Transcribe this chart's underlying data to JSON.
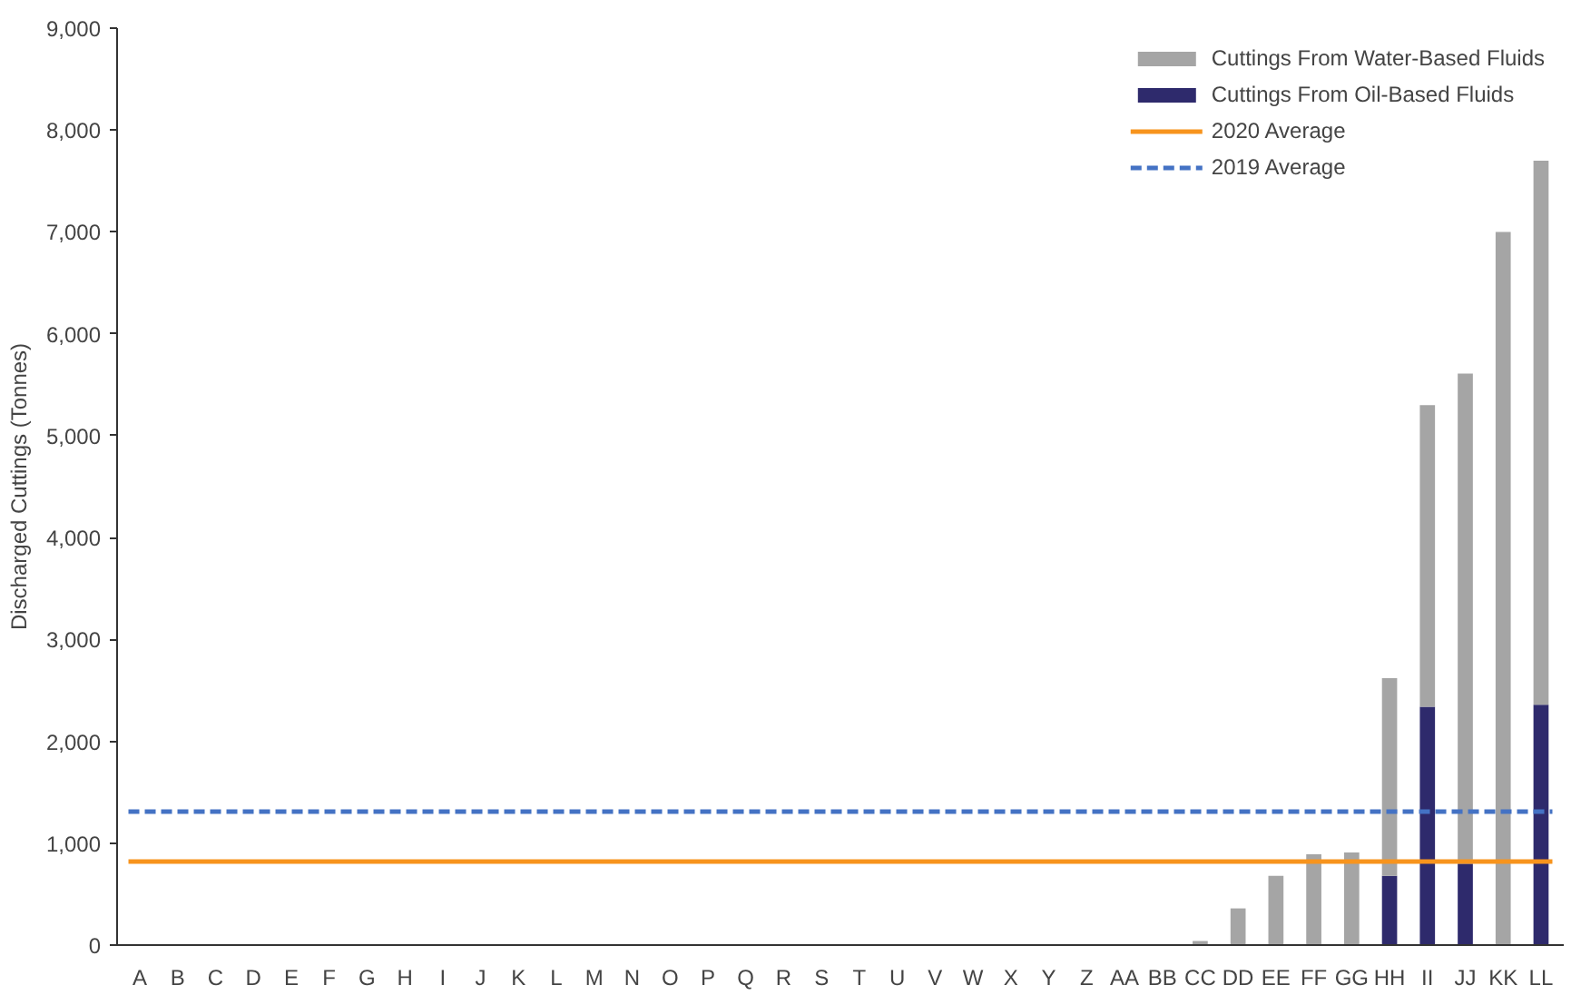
{
  "chart_data": {
    "type": "bar",
    "stacked": true,
    "ylabel": "Discharged Cuttings (Tonnes)",
    "categories": [
      "A",
      "B",
      "C",
      "D",
      "E",
      "F",
      "G",
      "H",
      "I",
      "J",
      "K",
      "L",
      "M",
      "N",
      "O",
      "P",
      "Q",
      "R",
      "S",
      "T",
      "U",
      "V",
      "W",
      "X",
      "Y",
      "Z",
      "AA",
      "BB",
      "CC",
      "DD",
      "EE",
      "FF",
      "GG",
      "HH",
      "II",
      "JJ",
      "KK",
      "LL"
    ],
    "series": [
      {
        "name": "Cuttings From Oil-Based Fluids",
        "color": "#2e2a6c",
        "values": [
          0,
          0,
          0,
          0,
          0,
          0,
          0,
          0,
          0,
          0,
          0,
          0,
          0,
          0,
          0,
          0,
          0,
          0,
          0,
          0,
          0,
          0,
          0,
          0,
          0,
          0,
          0,
          0,
          0,
          0,
          0,
          0,
          0,
          680,
          2340,
          800,
          0,
          2360
        ]
      },
      {
        "name": "Cuttings From Water-Based Fluids",
        "color": "#a5a5a5",
        "values": [
          0,
          0,
          0,
          0,
          0,
          0,
          0,
          0,
          0,
          0,
          0,
          0,
          0,
          0,
          0,
          0,
          0,
          0,
          0,
          0,
          0,
          0,
          0,
          0,
          0,
          0,
          0,
          0,
          40,
          360,
          680,
          890,
          910,
          1940,
          2960,
          4810,
          7000,
          5340
        ]
      }
    ],
    "ref_lines": [
      {
        "axis": "y",
        "value": 820,
        "label": "2020 Average",
        "color": "#f7941d",
        "line_style": "solid"
      },
      {
        "axis": "y",
        "value": 1310,
        "label": "2019 Average",
        "color": "#4472c4",
        "line_style": "dashed"
      }
    ],
    "ylim": [
      0,
      9000
    ],
    "yticks": [
      {
        "value": 0,
        "label": "0"
      },
      {
        "value": 1000,
        "label": "1,000"
      },
      {
        "value": 2000,
        "label": "2,000"
      },
      {
        "value": 3000,
        "label": "3,000"
      },
      {
        "value": 4000,
        "label": "4,000"
      },
      {
        "value": 5000,
        "label": "5,000"
      },
      {
        "value": 6000,
        "label": "6,000"
      },
      {
        "value": 7000,
        "label": "7,000"
      },
      {
        "value": 8000,
        "label": "8,000"
      },
      {
        "value": 9000,
        "label": "9,000"
      }
    ],
    "grid": false,
    "legend": "top right"
  }
}
